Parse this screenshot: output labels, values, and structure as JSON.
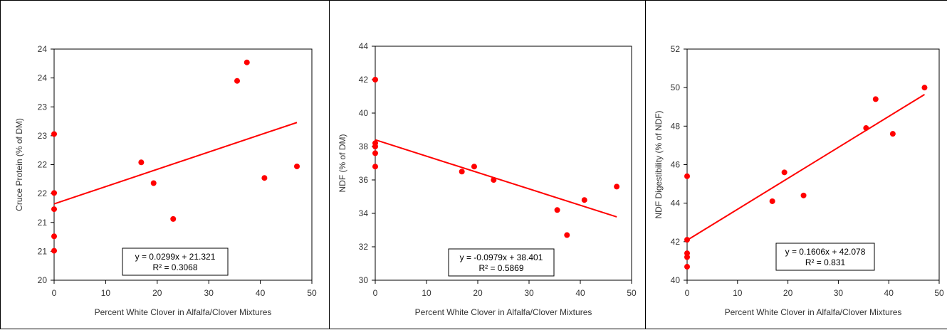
{
  "chart_data": [
    {
      "type": "scatter",
      "title": "",
      "xlabel": "Percent White Clover in Alfalfa/Clover Mixtures",
      "ylabel": "Cruce Protein (% of DM)",
      "xlim": [
        0,
        50
      ],
      "ylim": [
        20,
        24
      ],
      "x_ticks": [
        0,
        10,
        20,
        30,
        40,
        50
      ],
      "y_tick_values": [
        20,
        20.5,
        21,
        21.5,
        22,
        22.5,
        23,
        23.5,
        24
      ],
      "y_tick_labels": [
        "20",
        "21",
        "21",
        "22",
        "22",
        "23",
        "23",
        "24",
        "24"
      ],
      "grid": false,
      "legend": "none",
      "marker_color": "#ff0000",
      "line_color": "#ff0000",
      "points": [
        {
          "x": 0,
          "y": 20.51
        },
        {
          "x": 0,
          "y": 20.76
        },
        {
          "x": 0,
          "y": 21.23
        },
        {
          "x": 0,
          "y": 21.51
        },
        {
          "x": 0,
          "y": 22.53
        },
        {
          "x": 16.9,
          "y": 22.04
        },
        {
          "x": 19.3,
          "y": 21.68
        },
        {
          "x": 23.1,
          "y": 21.06
        },
        {
          "x": 35.5,
          "y": 23.45
        },
        {
          "x": 37.4,
          "y": 23.77
        },
        {
          "x": 40.8,
          "y": 21.77
        },
        {
          "x": 47.1,
          "y": 21.97
        }
      ],
      "trendline": {
        "slope": 0.0299,
        "intercept": 21.321,
        "x_range": [
          0,
          47.1
        ]
      },
      "equation": "y = 0.0299x + 21.321",
      "r2": "R² = 0.3068"
    },
    {
      "type": "scatter",
      "title": "",
      "xlabel": "Percent White Clover in Alfalfa/Clover Mixtures",
      "ylabel": "NDF (% of DM)",
      "xlim": [
        0,
        50
      ],
      "ylim": [
        30,
        44
      ],
      "x_ticks": [
        0,
        10,
        20,
        30,
        40,
        50
      ],
      "y_tick_values": [
        30,
        32,
        34,
        36,
        38,
        40,
        42,
        44
      ],
      "y_tick_labels": [
        "30",
        "32",
        "34",
        "36",
        "38",
        "40",
        "42",
        "44"
      ],
      "grid": false,
      "legend": "none",
      "marker_color": "#ff0000",
      "line_color": "#ff0000",
      "points": [
        {
          "x": 0,
          "y": 42.0
        },
        {
          "x": 0,
          "y": 38.2
        },
        {
          "x": 0,
          "y": 38.0
        },
        {
          "x": 0,
          "y": 37.6
        },
        {
          "x": 0,
          "y": 36.8
        },
        {
          "x": 16.9,
          "y": 36.5
        },
        {
          "x": 19.3,
          "y": 36.8
        },
        {
          "x": 23.1,
          "y": 36.0
        },
        {
          "x": 35.5,
          "y": 34.2
        },
        {
          "x": 37.4,
          "y": 32.7
        },
        {
          "x": 40.8,
          "y": 34.8
        },
        {
          "x": 47.1,
          "y": 35.6
        }
      ],
      "trendline": {
        "slope": -0.0979,
        "intercept": 38.401,
        "x_range": [
          0,
          47.1
        ]
      },
      "equation": "y = -0.0979x + 38.401",
      "r2": "R² = 0.5869"
    },
    {
      "type": "scatter",
      "title": "",
      "xlabel": "Percent White Clover in Alfalfa/Clover Mixtures",
      "ylabel": "NDF Digestibility (% of NDF)",
      "xlim": [
        0,
        50
      ],
      "ylim": [
        40,
        52
      ],
      "x_ticks": [
        0,
        10,
        20,
        30,
        40,
        50
      ],
      "y_tick_values": [
        40,
        42,
        44,
        46,
        48,
        50,
        52
      ],
      "y_tick_labels": [
        "40",
        "42",
        "44",
        "46",
        "48",
        "50",
        "52"
      ],
      "grid": false,
      "legend": "none",
      "marker_color": "#ff0000",
      "line_color": "#ff0000",
      "points": [
        {
          "x": 0,
          "y": 45.4
        },
        {
          "x": 0,
          "y": 42.1
        },
        {
          "x": 0,
          "y": 41.4
        },
        {
          "x": 0,
          "y": 41.2
        },
        {
          "x": 0,
          "y": 40.7
        },
        {
          "x": 16.9,
          "y": 44.1
        },
        {
          "x": 19.3,
          "y": 45.6
        },
        {
          "x": 23.1,
          "y": 44.4
        },
        {
          "x": 35.5,
          "y": 47.9
        },
        {
          "x": 37.4,
          "y": 49.4
        },
        {
          "x": 40.8,
          "y": 47.6
        },
        {
          "x": 47.1,
          "y": 50.0
        }
      ],
      "trendline": {
        "slope": 0.1606,
        "intercept": 42.078,
        "x_range": [
          0,
          47.1
        ]
      },
      "equation": "y = 0.1606x + 42.078",
      "r2": "R² = 0.831"
    }
  ]
}
